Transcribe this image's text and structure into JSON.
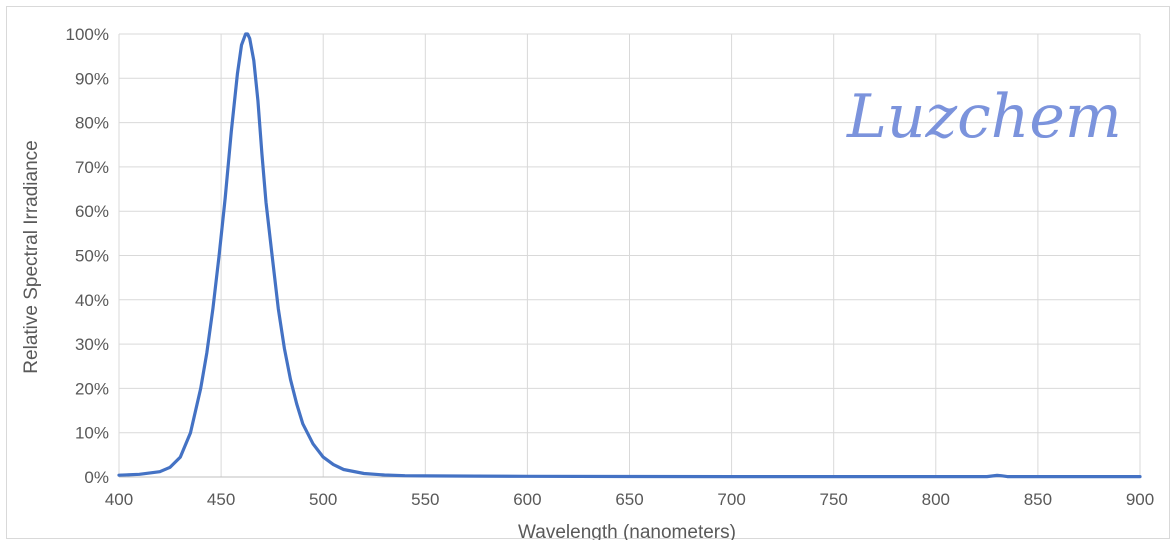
{
  "chart_data": {
    "type": "line",
    "title": "",
    "xlabel": "Wavelength (nanometers)",
    "ylabel": "Relative Spectral Irradiance",
    "xlim": [
      400,
      900
    ],
    "ylim": [
      0,
      100
    ],
    "y_unit": "%",
    "x_ticks": [
      400,
      450,
      500,
      550,
      600,
      650,
      700,
      750,
      800,
      850,
      900
    ],
    "y_ticks": [
      0,
      10,
      20,
      30,
      40,
      50,
      60,
      70,
      80,
      90,
      100
    ],
    "x_tick_labels": [
      "400",
      "450",
      "500",
      "550",
      "600",
      "650",
      "700",
      "750",
      "800",
      "850",
      "900"
    ],
    "y_tick_labels": [
      "0%",
      "10%",
      "20%",
      "30%",
      "40%",
      "50%",
      "60%",
      "70%",
      "80%",
      "90%",
      "100%"
    ],
    "grid": true,
    "legend": "none",
    "watermark": "Luzchem",
    "series_color": "#4472c4",
    "series": [
      {
        "x": [
          400,
          410,
          420,
          425,
          430,
          435,
          440,
          443,
          446,
          449,
          452,
          455,
          458,
          460,
          462,
          463,
          464,
          466,
          468,
          470,
          472,
          475,
          478,
          481,
          484,
          487,
          490,
          495,
          500,
          505,
          510,
          520,
          530,
          540,
          550,
          575,
          600,
          650,
          700,
          750,
          800,
          825,
          830,
          832,
          835,
          850,
          875,
          900
        ],
        "y": [
          0.4,
          0.6,
          1.2,
          2.2,
          4.5,
          10,
          20,
          28,
          38,
          50,
          63,
          78,
          91,
          97.5,
          100,
          100,
          99,
          94,
          85,
          73,
          62,
          50,
          38,
          29,
          22,
          16.5,
          12,
          7.5,
          4.5,
          2.8,
          1.7,
          0.8,
          0.45,
          0.3,
          0.25,
          0.2,
          0.15,
          0.12,
          0.1,
          0.08,
          0.08,
          0.1,
          0.35,
          0.3,
          0.1,
          0.08,
          0.08,
          0.1
        ]
      }
    ]
  }
}
